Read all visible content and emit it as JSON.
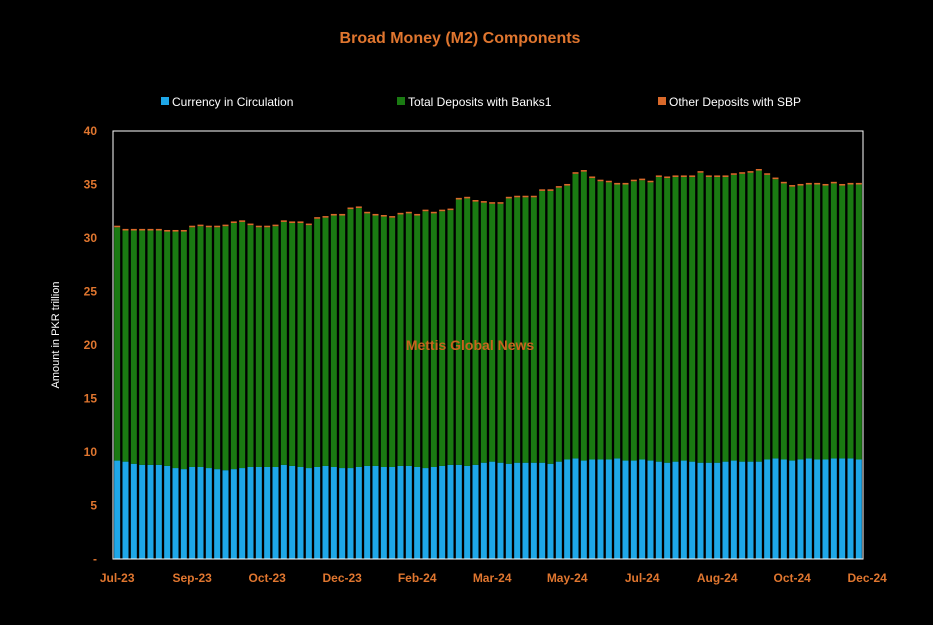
{
  "chart_data": {
    "type": "bar",
    "stacked": true,
    "title": "Broad Money (M2) Components",
    "ylabel": "Amount in PKR trillion",
    "xlabel": "",
    "ylim": [
      0,
      40
    ],
    "y_ticks": [
      "-",
      "5",
      "10",
      "15",
      "20",
      "25",
      "30",
      "35",
      "40"
    ],
    "x_tick_labels": [
      "Jul-23",
      "Sep-23",
      "Oct-23",
      "Dec-23",
      "Feb-24",
      "Mar-24",
      "May-24",
      "Jul-24",
      "Aug-24",
      "Oct-24",
      "Dec-24"
    ],
    "x_tick_positions": [
      0,
      9,
      18,
      27,
      36,
      45,
      54,
      63,
      72,
      81,
      90
    ],
    "legend_position": "top",
    "watermark": "Mettis Global News",
    "series": [
      {
        "name": "Currency in Circulation",
        "color": "#1ea7e8",
        "values": [
          9.2,
          9.1,
          8.9,
          8.8,
          8.8,
          8.8,
          8.7,
          8.5,
          8.4,
          8.6,
          8.6,
          8.5,
          8.4,
          8.3,
          8.4,
          8.5,
          8.6,
          8.6,
          8.6,
          8.6,
          8.8,
          8.7,
          8.6,
          8.5,
          8.6,
          8.7,
          8.6,
          8.5,
          8.5,
          8.6,
          8.7,
          8.7,
          8.6,
          8.6,
          8.7,
          8.7,
          8.6,
          8.5,
          8.6,
          8.7,
          8.8,
          8.8,
          8.7,
          8.8,
          9.0,
          9.1,
          9.0,
          8.9,
          9.0,
          9.0,
          9.0,
          9.0,
          8.9,
          9.1,
          9.3,
          9.4,
          9.2,
          9.3,
          9.3,
          9.3,
          9.4,
          9.2,
          9.2,
          9.3,
          9.2,
          9.1,
          9.0,
          9.1,
          9.2,
          9.1,
          9.0,
          9.0,
          9.0,
          9.1,
          9.2,
          9.1,
          9.1,
          9.1,
          9.3,
          9.4,
          9.3,
          9.2,
          9.3,
          9.4,
          9.3,
          9.3,
          9.4,
          9.4,
          9.4,
          9.3
        ]
      },
      {
        "name": "Total Deposits with Banks1",
        "color": "#1a7a12",
        "values": [
          21.8,
          21.6,
          21.8,
          21.9,
          21.9,
          21.9,
          21.9,
          22.1,
          22.2,
          22.4,
          22.5,
          22.5,
          22.6,
          22.8,
          23.0,
          23.0,
          22.6,
          22.4,
          22.4,
          22.5,
          22.7,
          22.7,
          22.8,
          22.7,
          23.2,
          23.2,
          23.5,
          23.6,
          24.2,
          24.2,
          23.6,
          23.4,
          23.4,
          23.3,
          23.5,
          23.6,
          23.5,
          24.0,
          23.7,
          23.8,
          23.8,
          24.8,
          25.0,
          24.6,
          24.3,
          24.1,
          24.2,
          24.8,
          24.8,
          24.8,
          24.8,
          25.4,
          25.5,
          25.6,
          25.6,
          26.6,
          27.0,
          26.3,
          26.0,
          25.9,
          25.6,
          25.8,
          26.1,
          26.1,
          26.0,
          26.6,
          26.6,
          26.6,
          26.5,
          26.6,
          27.1,
          26.7,
          26.7,
          26.6,
          26.7,
          26.9,
          27.0,
          27.2,
          26.6,
          26.1,
          25.8,
          25.6,
          25.6,
          25.6,
          25.7,
          25.6,
          25.7,
          25.5,
          25.6,
          25.7
        ]
      },
      {
        "name": "Other Deposits with SBP",
        "color": "#d9692a",
        "values": [
          0.15,
          0.15,
          0.15,
          0.15,
          0.15,
          0.15,
          0.15,
          0.15,
          0.15,
          0.15,
          0.15,
          0.15,
          0.15,
          0.15,
          0.15,
          0.15,
          0.15,
          0.15,
          0.15,
          0.15,
          0.15,
          0.15,
          0.15,
          0.15,
          0.15,
          0.15,
          0.15,
          0.15,
          0.15,
          0.15,
          0.15,
          0.15,
          0.15,
          0.15,
          0.15,
          0.15,
          0.15,
          0.15,
          0.15,
          0.15,
          0.15,
          0.15,
          0.15,
          0.15,
          0.15,
          0.15,
          0.15,
          0.15,
          0.15,
          0.15,
          0.15,
          0.15,
          0.15,
          0.15,
          0.15,
          0.15,
          0.15,
          0.15,
          0.15,
          0.15,
          0.15,
          0.15,
          0.15,
          0.15,
          0.15,
          0.15,
          0.15,
          0.15,
          0.15,
          0.15,
          0.15,
          0.15,
          0.15,
          0.15,
          0.15,
          0.15,
          0.15,
          0.15,
          0.15,
          0.15,
          0.15,
          0.15,
          0.15,
          0.15,
          0.15,
          0.15,
          0.15,
          0.15,
          0.15,
          0.15
        ]
      }
    ]
  },
  "colors": {
    "title": "#e0762f",
    "tick": "#e0762f",
    "watermark": "#c8641e",
    "background": "#000000",
    "plot_border": "#ffffff"
  }
}
